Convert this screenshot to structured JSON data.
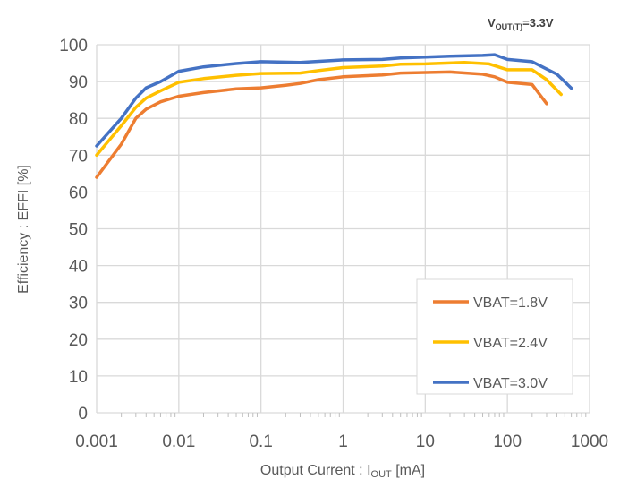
{
  "chart_data": {
    "type": "line",
    "title": "",
    "annotation": {
      "main": "V",
      "sub": "OUT(T)",
      "rest": "=3.3V"
    },
    "xlabel": {
      "main": "Output Current : I",
      "sub": "OUT",
      "rest": " [mA]"
    },
    "ylabel": "Efficiency : EFFI [%]",
    "xscale": "log",
    "xlim": [
      0.001,
      1000
    ],
    "ylim": [
      0,
      100
    ],
    "xticks": [
      "0.001",
      "0.01",
      "0.1",
      "1",
      "10",
      "100",
      "1000"
    ],
    "yticks": [
      "0",
      "10",
      "20",
      "30",
      "40",
      "50",
      "60",
      "70",
      "80",
      "90",
      "100"
    ],
    "grid": true,
    "legend": "bottom-right",
    "series": [
      {
        "name": "VBAT=1.8V",
        "color": "#ED7D31",
        "x": [
          0.001,
          0.002,
          0.003,
          0.004,
          0.006,
          0.01,
          0.02,
          0.05,
          0.1,
          0.2,
          0.3,
          0.5,
          1,
          3,
          5,
          20,
          50,
          70,
          100,
          200,
          300
        ],
        "y": [
          64,
          73,
          80,
          82.5,
          84.5,
          86,
          87,
          88,
          88.3,
          89,
          89.5,
          90.5,
          91.3,
          91.8,
          92.3,
          92.6,
          92,
          91.3,
          89.8,
          89.2,
          84
        ]
      },
      {
        "name": "VBAT=2.4V",
        "color": "#FFC000",
        "x": [
          0.001,
          0.002,
          0.003,
          0.004,
          0.006,
          0.01,
          0.02,
          0.05,
          0.1,
          0.3,
          0.5,
          1,
          3,
          5,
          10,
          30,
          60,
          100,
          200,
          300,
          450
        ],
        "y": [
          70,
          78,
          83,
          85.5,
          87.5,
          89.8,
          90.8,
          91.7,
          92.2,
          92.3,
          93,
          93.8,
          94.2,
          94.7,
          94.8,
          95.2,
          94.8,
          93.2,
          93.2,
          90.5,
          86.5
        ]
      },
      {
        "name": "VBAT=3.0V",
        "color": "#4472C4",
        "x": [
          0.001,
          0.002,
          0.003,
          0.004,
          0.006,
          0.01,
          0.02,
          0.05,
          0.1,
          0.3,
          1,
          3,
          5,
          20,
          50,
          70,
          100,
          200,
          400,
          600
        ],
        "y": [
          72.5,
          80,
          85.5,
          88.3,
          90,
          92.8,
          94,
          94.9,
          95.4,
          95.2,
          95.9,
          96,
          96.4,
          96.9,
          97.1,
          97.3,
          96,
          95.4,
          92,
          88.2
        ]
      }
    ]
  }
}
